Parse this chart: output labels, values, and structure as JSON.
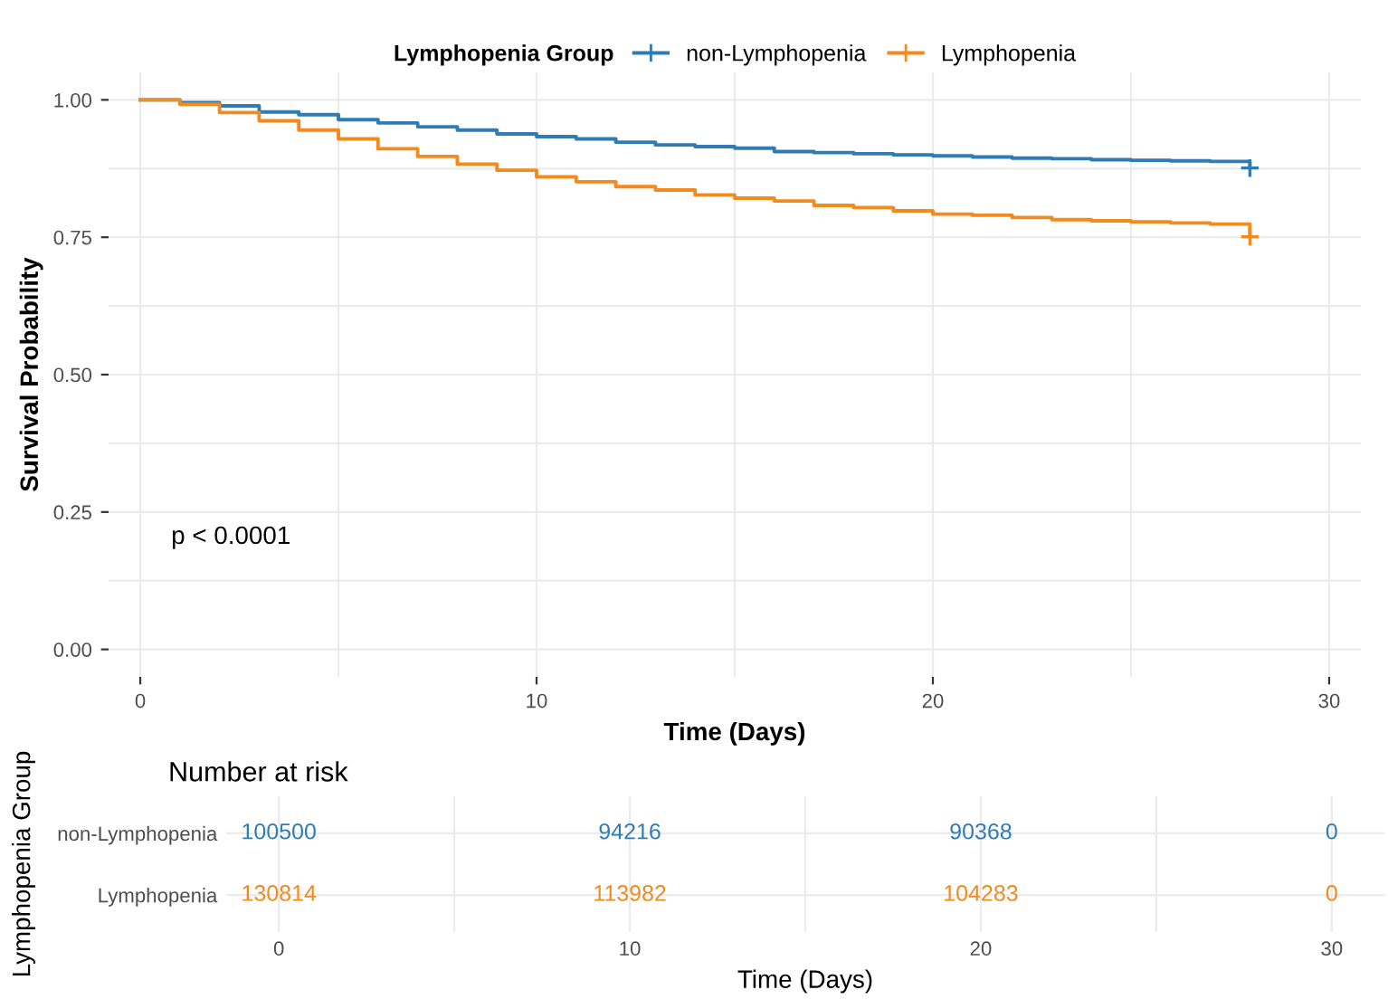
{
  "chart_data": [
    {
      "type": "step",
      "xlabel": "Time (Days)",
      "ylabel": "Survival Probability",
      "legend_title": "Lymphopenia Group",
      "legend": "top",
      "grid": true,
      "line_style": "solid",
      "x": [
        0,
        1,
        2,
        3,
        4,
        5,
        6,
        7,
        8,
        9,
        10,
        11,
        12,
        13,
        14,
        15,
        16,
        17,
        18,
        19,
        20,
        21,
        22,
        23,
        24,
        25,
        26,
        27,
        28
      ],
      "series": [
        {
          "name": "non-Lymphopenia",
          "color": "#2f7bb3",
          "values": [
            1.0,
            0.995,
            0.989,
            0.978,
            0.973,
            0.964,
            0.958,
            0.951,
            0.945,
            0.938,
            0.933,
            0.929,
            0.923,
            0.918,
            0.915,
            0.912,
            0.906,
            0.904,
            0.902,
            0.9,
            0.898,
            0.896,
            0.894,
            0.893,
            0.891,
            0.89,
            0.889,
            0.888,
            0.876
          ]
        },
        {
          "name": "Lymphopenia",
          "color": "#f28a1e",
          "values": [
            1.0,
            0.992,
            0.977,
            0.962,
            0.945,
            0.929,
            0.911,
            0.897,
            0.883,
            0.872,
            0.86,
            0.851,
            0.842,
            0.836,
            0.827,
            0.821,
            0.816,
            0.808,
            0.804,
            0.798,
            0.792,
            0.79,
            0.786,
            0.782,
            0.78,
            0.778,
            0.776,
            0.774,
            0.751
          ]
        },
        {
          "type": "scatter",
          "marker": "cross",
          "color": "#2f7bb3",
          "x": [
            28
          ],
          "values": [
            0.876
          ]
        },
        {
          "type": "scatter",
          "marker": "cross",
          "color": "#f28a1e",
          "x": [
            28
          ],
          "values": [
            0.751
          ]
        }
      ],
      "xlim": [
        -0.8,
        30.8
      ],
      "xticks": [
        0,
        10,
        20,
        30
      ],
      "ylim": [
        -0.05,
        1.05
      ],
      "yticks": [
        {
          "value": 0,
          "label": "0.00"
        },
        {
          "value": 0.25,
          "label": "0.25"
        },
        {
          "value": 0.5,
          "label": "0.50"
        },
        {
          "value": 0.75,
          "label": "0.75"
        },
        {
          "value": 1,
          "label": "1.00"
        }
      ],
      "annotations": [
        "p < 0.0001"
      ]
    },
    {
      "type": "heatmap",
      "title": "Number at risk",
      "xlabel": "Time (Days)",
      "ylabel": "Lymphopenia Group",
      "categories": [
        "0",
        "10",
        "20",
        "30"
      ],
      "y_categories": [
        "non-Lymphopenia",
        "Lymphopenia"
      ],
      "colors": [
        "#2f7bb3",
        "#f28a1e"
      ],
      "cells": [
        [
          100500,
          94216,
          90368,
          0
        ],
        [
          130814,
          113982,
          104283,
          0
        ]
      ],
      "data_labels": true,
      "grid": true
    }
  ]
}
